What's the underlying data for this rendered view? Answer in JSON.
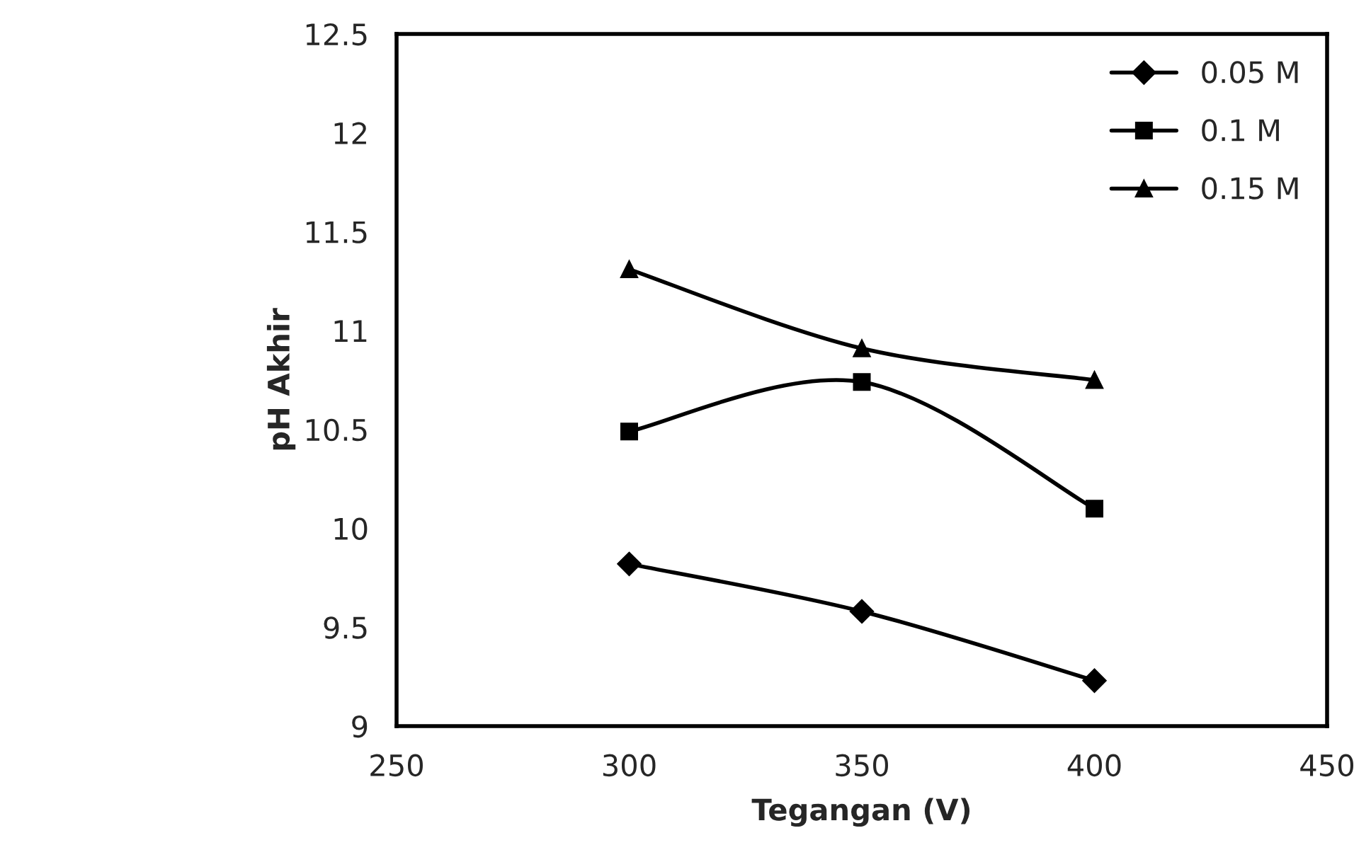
{
  "chart_data": {
    "type": "line",
    "xlabel": "Tegangan (V)",
    "ylabel": "pH Akhir",
    "x": [
      300,
      350,
      400
    ],
    "series": [
      {
        "name": "0.05 M",
        "color": "#000000",
        "marker": "diamond",
        "values": [
          9.82,
          9.58,
          9.23
        ]
      },
      {
        "name": "0.1 M",
        "color": "#000000",
        "marker": "square",
        "values": [
          10.49,
          10.74,
          10.1
        ]
      },
      {
        "name": "0.15 M",
        "color": "#000000",
        "marker": "triangle",
        "values": [
          11.31,
          10.91,
          10.75
        ]
      }
    ],
    "xlim": [
      250,
      450
    ],
    "xticks": [
      250,
      300,
      350,
      400,
      450
    ],
    "ylim": [
      9,
      12.5
    ],
    "yticks": [
      9,
      9.5,
      10,
      10.5,
      11,
      11.5,
      12,
      12.5
    ],
    "grid": false,
    "legend": "top right",
    "line_style": "solid"
  }
}
